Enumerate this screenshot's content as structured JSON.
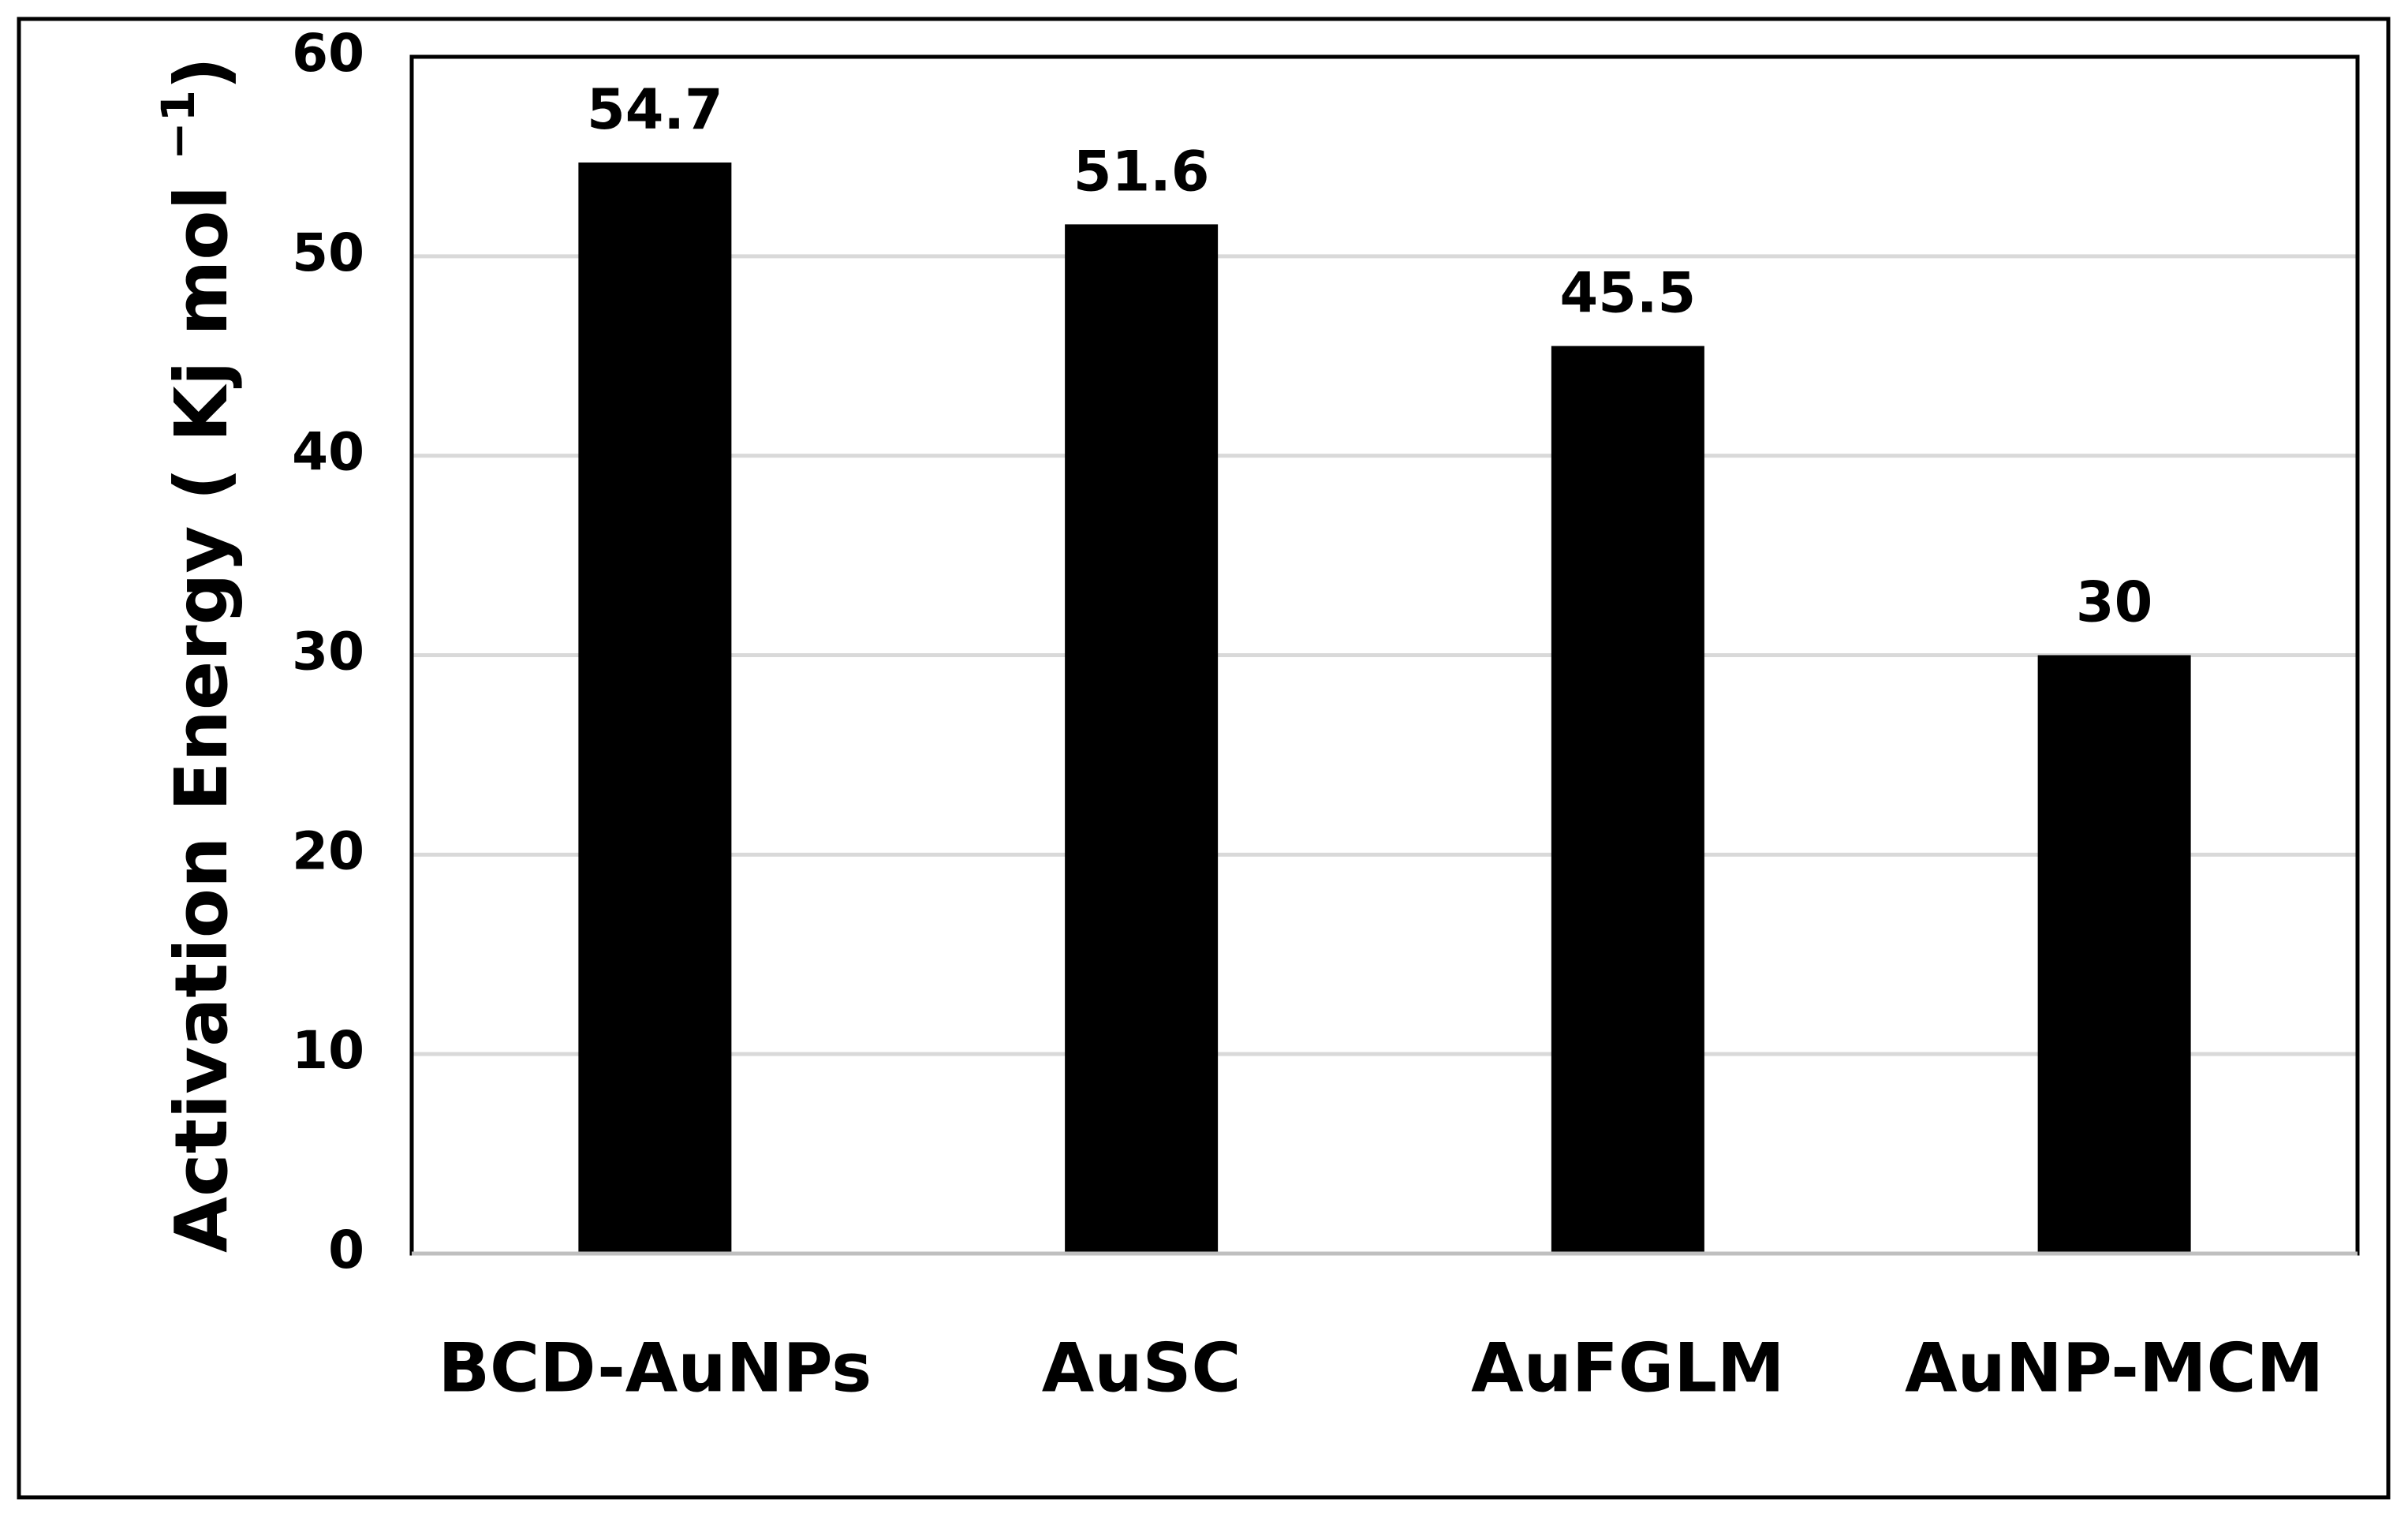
{
  "chart_data": {
    "type": "bar",
    "y_label": "Activation Energy ( Kj mol",
    "y_label_superscript": "−1",
    "y_label_end": ")",
    "categories": [
      "BCD-AuNPs",
      "AuSC",
      "AuFGLM",
      "AuNP-MCM"
    ],
    "values": [
      54.7,
      51.6,
      45.5,
      30
    ],
    "color": "#000000",
    "ylim": [
      0,
      60
    ],
    "yticks": [
      0,
      10,
      20,
      30,
      40,
      50,
      60
    ],
    "grid": true
  }
}
